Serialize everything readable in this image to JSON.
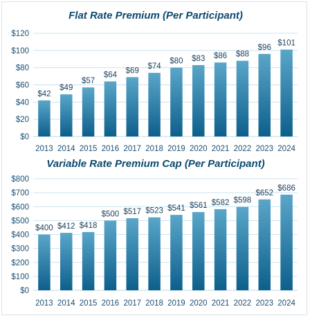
{
  "colors": {
    "bar_top": "#5aa6c9",
    "bar_bottom": "#0d5f8c",
    "title": "#0b4a6f",
    "grid": "#c9e3f2"
  },
  "chart_data": [
    {
      "type": "bar",
      "title": "Flat Rate Premium (Per Participant)",
      "categories": [
        "2013",
        "2014",
        "2015",
        "2016",
        "2017",
        "2018",
        "2019",
        "2020",
        "2021",
        "2022",
        "2023",
        "2024"
      ],
      "values": [
        42,
        49,
        57,
        64,
        69,
        74,
        80,
        83,
        86,
        88,
        96,
        101
      ],
      "data_labels": [
        "$42",
        "$49",
        "$57",
        "$64",
        "$69",
        "$74",
        "$80",
        "$83",
        "$86",
        "$88",
        "$96",
        "$101"
      ],
      "yticks": [
        "$0",
        "$20",
        "$40",
        "$60",
        "$80",
        "$100",
        "$120"
      ],
      "ytick_values": [
        0,
        20,
        40,
        60,
        80,
        100,
        120
      ],
      "ylim": [
        0,
        120
      ],
      "grid": true,
      "xlabel": "",
      "ylabel": ""
    },
    {
      "type": "bar",
      "title": "Variable Rate Premium Cap (Per Participant)",
      "categories": [
        "2013",
        "2014",
        "2015",
        "2016",
        "2017",
        "2018",
        "2019",
        "2020",
        "2021",
        "2022",
        "2023",
        "2024"
      ],
      "values": [
        400,
        412,
        418,
        500,
        517,
        523,
        541,
        561,
        582,
        598,
        652,
        686
      ],
      "data_labels": [
        "$400",
        "$412",
        "$418",
        "$500",
        "$517",
        "$523",
        "$541",
        "$561",
        "$582",
        "$598",
        "$652",
        "$686"
      ],
      "yticks": [
        "$0",
        "$100",
        "$200",
        "$300",
        "$400",
        "$500",
        "$600",
        "$700",
        "$800"
      ],
      "ytick_values": [
        0,
        100,
        200,
        300,
        400,
        500,
        600,
        700,
        800
      ],
      "ylim": [
        0,
        800
      ],
      "grid": true,
      "xlabel": "",
      "ylabel": ""
    }
  ]
}
